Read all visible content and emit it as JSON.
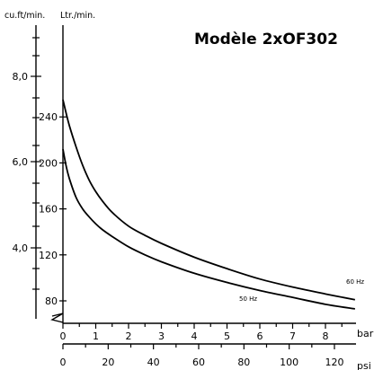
{
  "chart_data": {
    "type": "line",
    "title": "Modèle 2xOF302",
    "y_units": {
      "left": "cu.ft/min.",
      "right": "Ltr./min."
    },
    "x_units": {
      "top": "bar",
      "bottom": "psi"
    },
    "bar_ticks": [
      "0",
      "1",
      "2",
      "3",
      "4",
      "5",
      "6",
      "7",
      "8"
    ],
    "psi_ticks": [
      "0",
      "20",
      "40",
      "60",
      "80",
      "100",
      "120"
    ],
    "cfm_ticks": [
      "8,0",
      "6,0",
      "4,0"
    ],
    "lpm_ticks": [
      "240",
      "200",
      "160",
      "120",
      "80"
    ],
    "xlim": [
      0,
      8.9
    ],
    "ylim_lpm": [
      70,
      255
    ],
    "series": [
      {
        "name": "60 Hz",
        "x": [
          0,
          0.1,
          0.2,
          0.4,
          0.6,
          0.8,
          1.0,
          1.2,
          1.5,
          2.0,
          2.5,
          3.0,
          4.0,
          5.0,
          6.0,
          7.0,
          8.0,
          8.9
        ],
        "y": [
          255,
          243,
          232,
          214,
          198,
          185,
          175,
          167,
          157,
          145,
          137,
          130,
          118,
          108,
          99,
          92,
          86,
          81
        ]
      },
      {
        "name": "50 Hz",
        "x": [
          0,
          0.1,
          0.2,
          0.4,
          0.6,
          0.8,
          1.0,
          1.2,
          1.5,
          2.0,
          2.5,
          3.0,
          4.0,
          5.0,
          6.0,
          7.0,
          8.0,
          8.9
        ],
        "y": [
          212,
          197,
          186,
          170,
          160,
          153,
          147,
          142,
          136,
          127,
          120,
          114,
          104,
          96,
          89,
          83,
          77,
          73
        ]
      }
    ]
  }
}
